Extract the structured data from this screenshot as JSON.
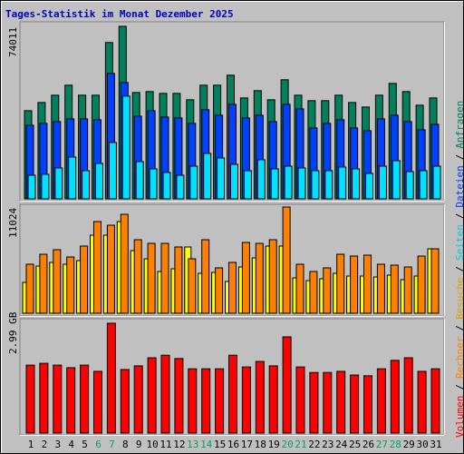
{
  "legend_separator": "/",
  "chart_data": [
    {
      "type": "bar",
      "title": "Tages-Statistik im Monat Dezember 2025",
      "ylim": [
        0,
        74011
      ],
      "yticks": [
        74011
      ],
      "series": [
        {
          "name": "Anfragen",
          "color": "#00805c",
          "label_color": "#00805c",
          "values": [
            37830,
            41340,
            44460,
            48750,
            44460,
            44460,
            67080,
            74011,
            45630,
            46020,
            45240,
            45240,
            42510,
            48750,
            48750,
            53040,
            43290,
            46410,
            42510,
            51090,
            44460,
            42120,
            42120,
            44460,
            41340,
            39390,
            44460,
            49530,
            46020,
            40170,
            43290
          ]
        },
        {
          "name": "Dateien",
          "color": "#0040ff",
          "label_color": "#0040ff",
          "values": [
            31590,
            32370,
            33150,
            34320,
            34320,
            33930,
            53820,
            49920,
            35490,
            37830,
            35100,
            34710,
            32370,
            38220,
            35880,
            40560,
            34710,
            35880,
            33150,
            40560,
            38610,
            30420,
            32370,
            33930,
            30420,
            29250,
            34320,
            35880,
            33150,
            29640,
            31980
          ]
        },
        {
          "name": "Seiten",
          "color": "#00e0ff",
          "label_color": "#00c8e8",
          "values": [
            10140,
            10530,
            13260,
            17940,
            12090,
            15210,
            24180,
            44070,
            15990,
            12870,
            11310,
            10140,
            14040,
            19500,
            17550,
            14820,
            12090,
            16770,
            12870,
            14040,
            13260,
            12090,
            12090,
            13650,
            12870,
            10920,
            14040,
            16380,
            11700,
            12090,
            14040
          ]
        }
      ]
    },
    {
      "type": "bar",
      "ylim": [
        0,
        11024
      ],
      "yticks": [
        11024
      ],
      "series": [
        {
          "name": "Rechner",
          "color": "#ffff00",
          "label_color": "#ff8000",
          "values": [
            3203,
            4898,
            5275,
            5087,
            5464,
            8101,
            8101,
            9514,
            6500,
            5652,
            4333,
            4616,
            6877,
            4145,
            4239,
            3297,
            4804,
            5746,
            6971,
            6971,
            3674,
            3391,
            3580,
            4145,
            3862,
            3862,
            3768,
            3956,
            3485,
            3862,
            6688
          ]
        },
        {
          "name": "Besuche",
          "color": "#ff8000",
          "label_color": "#e0a000",
          "values": [
            5087,
            6123,
            6594,
            5840,
            6971,
            9514,
            9137,
            10268,
            7630,
            7253,
            7253,
            6877,
            5652,
            7630,
            4710,
            5275,
            7348,
            7253,
            7630,
            11024,
            5087,
            4333,
            4710,
            6123,
            5935,
            6029,
            5087,
            4993,
            4804,
            5935,
            6688
          ]
        }
      ]
    },
    {
      "type": "bar",
      "ylim": [
        0,
        2.99
      ],
      "yticks": [
        {
          "value": 2.99,
          "label": "2.99 GB"
        }
      ],
      "categories": [
        "1",
        "2",
        "3",
        "4",
        "5",
        "6",
        "7",
        "8",
        "9",
        "10",
        "11",
        "12",
        "13",
        "14",
        "15",
        "16",
        "17",
        "18",
        "19",
        "20",
        "21",
        "22",
        "23",
        "24",
        "25",
        "26",
        "27",
        "28",
        "29",
        "30",
        "31"
      ],
      "category_colors": [
        "#000000",
        "#000000",
        "#000000",
        "#000000",
        "#000000",
        "#00a060",
        "#00a060",
        "#000000",
        "#000000",
        "#000000",
        "#000000",
        "#000000",
        "#00a060",
        "#00a060",
        "#000000",
        "#000000",
        "#000000",
        "#000000",
        "#000000",
        "#00a060",
        "#00a060",
        "#000000",
        "#000000",
        "#000000",
        "#000000",
        "#000000",
        "#00a060",
        "#00a060",
        "#000000",
        "#000000",
        "#000000"
      ],
      "series": [
        {
          "name": "Volumen",
          "color": "#ff0000",
          "label_color": "#ff0000",
          "values": [
            1.85,
            1.9,
            1.85,
            1.78,
            1.85,
            1.68,
            2.99,
            1.73,
            1.83,
            2.05,
            2.12,
            2.03,
            1.75,
            1.75,
            1.75,
            2.12,
            1.8,
            1.95,
            1.83,
            2.62,
            1.8,
            1.65,
            1.65,
            1.68,
            1.58,
            1.56,
            1.75,
            1.98,
            2.05,
            1.68,
            1.75
          ]
        }
      ]
    }
  ]
}
